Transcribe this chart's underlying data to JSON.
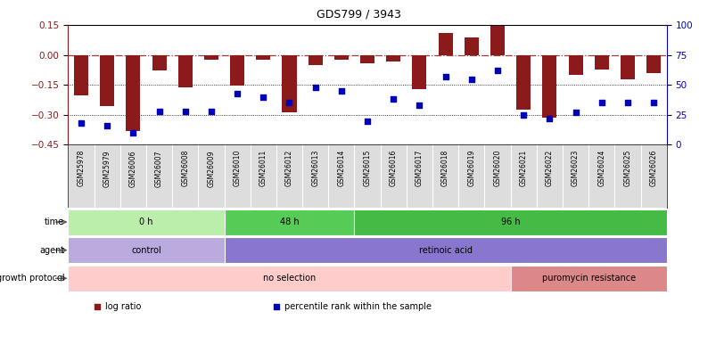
{
  "title": "GDS799 / 3943",
  "samples": [
    "GSM25978",
    "GSM25979",
    "GSM26006",
    "GSM26007",
    "GSM26008",
    "GSM26009",
    "GSM26010",
    "GSM26011",
    "GSM26012",
    "GSM26013",
    "GSM26014",
    "GSM26015",
    "GSM26016",
    "GSM26017",
    "GSM26018",
    "GSM26019",
    "GSM26020",
    "GSM26021",
    "GSM26022",
    "GSM26023",
    "GSM26024",
    "GSM26025",
    "GSM26026"
  ],
  "log_ratio": [
    -0.2,
    -0.255,
    -0.38,
    -0.075,
    -0.16,
    -0.025,
    -0.155,
    -0.022,
    -0.285,
    -0.05,
    -0.022,
    -0.04,
    -0.032,
    -0.17,
    0.11,
    0.09,
    0.145,
    -0.275,
    -0.315,
    -0.1,
    -0.07,
    -0.12,
    -0.09
  ],
  "percentile_rank": [
    18,
    16,
    10,
    28,
    28,
    28,
    43,
    40,
    35,
    48,
    45,
    20,
    38,
    33,
    57,
    55,
    62,
    25,
    22,
    27,
    35,
    35,
    35
  ],
  "bar_color": "#8B1A1A",
  "dot_color": "#0000BB",
  "ylim_left": [
    -0.45,
    0.15
  ],
  "ylim_right": [
    0,
    100
  ],
  "yticks_left": [
    -0.45,
    -0.3,
    -0.15,
    0.0,
    0.15
  ],
  "yticks_right": [
    0,
    25,
    50,
    75,
    100
  ],
  "time_groups": [
    {
      "label": "0 h",
      "start": 0,
      "end": 6,
      "color": "#BBEEAA"
    },
    {
      "label": "48 h",
      "start": 6,
      "end": 11,
      "color": "#55CC55"
    },
    {
      "label": "96 h",
      "start": 11,
      "end": 23,
      "color": "#44BB44"
    }
  ],
  "agent_groups": [
    {
      "label": "control",
      "start": 0,
      "end": 6,
      "color": "#BBAADD"
    },
    {
      "label": "retinoic acid",
      "start": 6,
      "end": 23,
      "color": "#8877CC"
    }
  ],
  "growth_groups": [
    {
      "label": "no selection",
      "start": 0,
      "end": 17,
      "color": "#FFCCCC"
    },
    {
      "label": "puromycin resistance",
      "start": 17,
      "end": 23,
      "color": "#DD8888"
    }
  ],
  "row_labels": [
    "time",
    "agent",
    "growth protocol"
  ],
  "legend_items": [
    {
      "label": "log ratio",
      "color": "#8B1A1A"
    },
    {
      "label": "percentile rank within the sample",
      "color": "#0000BB"
    }
  ],
  "xtick_bg": "#DDDDDD",
  "spine_color_left": "#8B1A1A",
  "spine_color_right": "#0000BB"
}
